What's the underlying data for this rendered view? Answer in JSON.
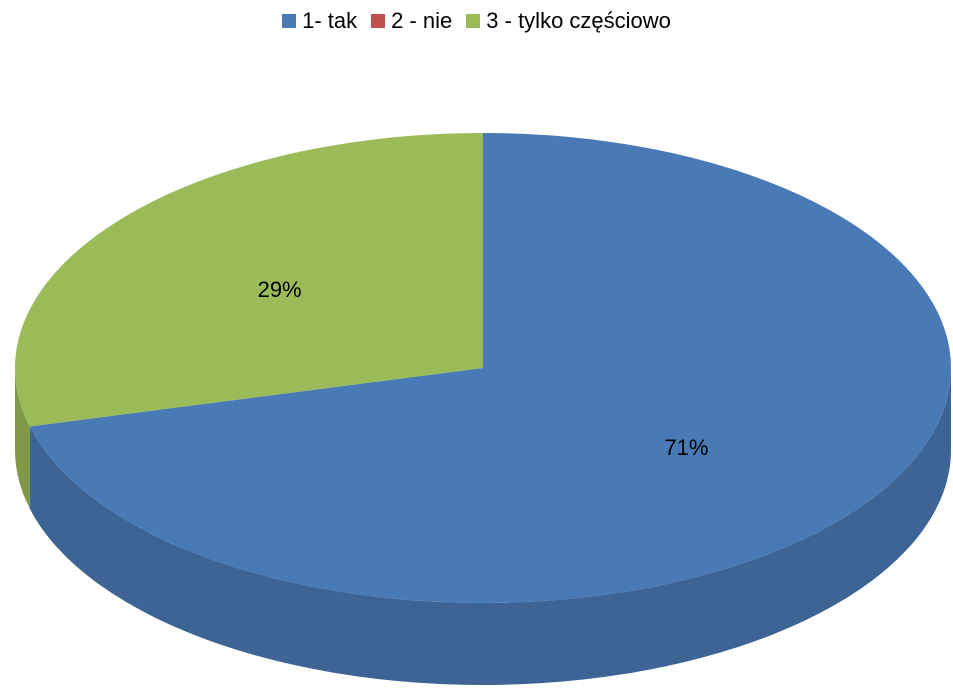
{
  "chart_data": {
    "type": "pie",
    "style": "3d",
    "categories": [
      "1- tak",
      "2 - nie",
      "3 - tylko częściowo"
    ],
    "values": [
      71,
      0,
      29
    ],
    "labels": [
      "71%",
      "",
      "29%"
    ],
    "colors": [
      "#4a7ab5",
      "#c0504d",
      "#9bbb59"
    ],
    "legend_position": "top"
  }
}
